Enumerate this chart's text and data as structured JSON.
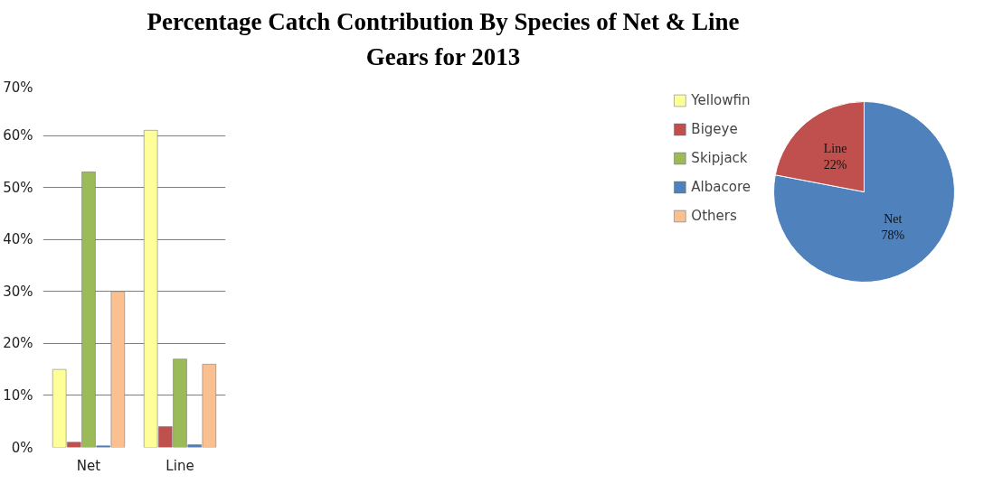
{
  "chart_data": [
    {
      "type": "bar",
      "title": "Percentage  Catch Contribution By Species of Net & Line Gears for 2013",
      "categories": [
        "Net",
        "Line"
      ],
      "series": [
        {
          "name": "Yellowfin",
          "color": "#ffff99",
          "values": [
            15,
            61
          ]
        },
        {
          "name": "Bigeye",
          "color": "#c0504d",
          "values": [
            1,
            4
          ]
        },
        {
          "name": "Skipjack",
          "color": "#9bbb59",
          "values": [
            53,
            17
          ]
        },
        {
          "name": "Albacore",
          "color": "#4f81bd",
          "values": [
            0.3,
            0.5
          ]
        },
        {
          "name": "Others",
          "color": "#fac090",
          "values": [
            30,
            16
          ]
        }
      ],
      "ylim": [
        0,
        70
      ],
      "yticks": [
        {
          "value": 0,
          "label": "0%"
        },
        {
          "value": 10,
          "label": "10%"
        },
        {
          "value": 20,
          "label": "20%"
        },
        {
          "value": 30,
          "label": "30%"
        },
        {
          "value": 40,
          "label": "40%"
        },
        {
          "value": 50,
          "label": "50%"
        },
        {
          "value": 60,
          "label": "60%"
        },
        {
          "value": 70,
          "label": "70%"
        }
      ],
      "grid": "y",
      "legend": "right"
    },
    {
      "type": "pie",
      "categories": [
        "Net",
        "Line"
      ],
      "values": [
        78,
        22
      ],
      "colors": [
        "#4f81bd",
        "#c0504d"
      ],
      "value_labels": [
        "78%",
        "22%"
      ]
    }
  ]
}
